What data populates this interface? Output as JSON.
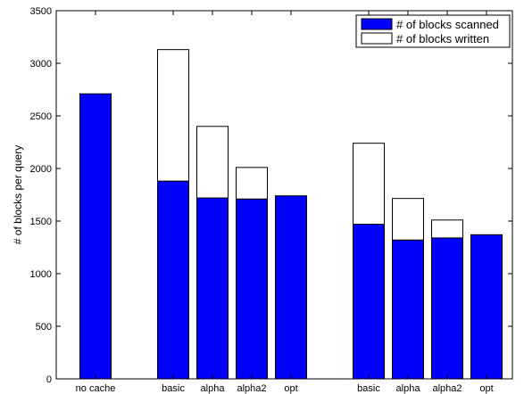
{
  "chart_data": {
    "type": "bar",
    "stacked": true,
    "title": "",
    "xlabel": "",
    "ylabel": "# of blocks per query",
    "ylim": [
      0,
      3500
    ],
    "yticks": [
      0,
      500,
      1000,
      1500,
      2000,
      2500,
      3000,
      3500
    ],
    "grid": false,
    "legend_position": "top-right",
    "bars": [
      {
        "label": "no cache",
        "scanned": 2710,
        "written": 0
      },
      {
        "label": "basic",
        "scanned": 1880,
        "written": 1250
      },
      {
        "label": "alpha",
        "scanned": 1720,
        "written": 680
      },
      {
        "label": "alpha2",
        "scanned": 1710,
        "written": 300
      },
      {
        "label": "opt",
        "scanned": 1740,
        "written": 0
      },
      {
        "label": "basic",
        "scanned": 1470,
        "written": 770
      },
      {
        "label": "alpha",
        "scanned": 1320,
        "written": 395
      },
      {
        "label": "alpha2",
        "scanned": 1340,
        "written": 170
      },
      {
        "label": "opt",
        "scanned": 1370,
        "written": 0
      }
    ],
    "series": [
      {
        "name": "# of blocks scanned",
        "color": "#0000ff",
        "key": "scanned"
      },
      {
        "name": "# of blocks written",
        "color": "#ffffff",
        "key": "written"
      }
    ]
  }
}
